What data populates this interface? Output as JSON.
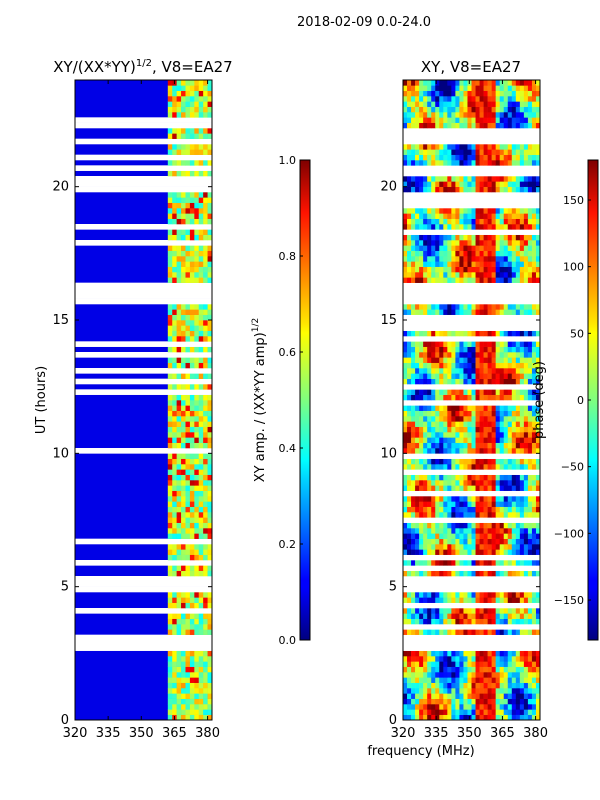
{
  "suptitle": "2018-02-09 0.0-24.0",
  "chart_data": [
    {
      "type": "heatmap",
      "title": "XY/(XX*YY)^{1/2}, V8=EA27",
      "title_main": "XY/(XX*YY)",
      "title_exp": "1/2",
      "title_tail": ", V8=EA27",
      "ylabel": "UT (hours)",
      "xlabel": "",
      "xlim": [
        320,
        382
      ],
      "ylim": [
        0,
        24
      ],
      "xticks": [
        320,
        335,
        350,
        365,
        380
      ],
      "yticks": [
        0,
        5,
        10,
        15,
        20
      ],
      "colormap": "jet",
      "background_level": 0.1,
      "bright_channels_mhz": [
        [
          363,
          367
        ],
        [
          368,
          370
        ],
        [
          371,
          374
        ],
        [
          375,
          377
        ],
        [
          378,
          381
        ]
      ],
      "flagged_intervals_hours": [
        [
          2.7,
          3.1
        ],
        [
          4.9,
          5.3
        ],
        [
          15.7,
          16.3
        ],
        [
          22.3,
          22.5
        ]
      ],
      "colorbar": {
        "label": "XY amp. / (XX*YY amp)^{1/2}",
        "label_main": "XY amp. / (XX*YY amp)",
        "label_exp": "1/2",
        "min": 0.0,
        "max": 1.0,
        "ticks": [
          "0.0",
          "0.2",
          "0.4",
          "0.6",
          "0.8",
          "1.0"
        ]
      }
    },
    {
      "type": "heatmap",
      "title": "XY, V8=EA27",
      "ylabel": "",
      "xlabel": "frequency (MHz)",
      "xlim": [
        320,
        382
      ],
      "ylim": [
        0,
        24
      ],
      "xticks": [
        320,
        335,
        350,
        365,
        380
      ],
      "yticks": [
        0,
        5,
        10,
        15,
        20
      ],
      "colormap": "jet",
      "value_range_deg": [
        -180,
        180
      ],
      "flagged_intervals_hours": [
        [
          2.7,
          3.1
        ],
        [
          4.9,
          5.3
        ],
        [
          15.7,
          16.3
        ]
      ],
      "colorbar": {
        "label": "phase (deg)",
        "min": -180,
        "max": 180,
        "ticks": [
          "−150",
          "−100",
          "−50",
          "0",
          "50",
          "100",
          "150"
        ]
      }
    }
  ]
}
